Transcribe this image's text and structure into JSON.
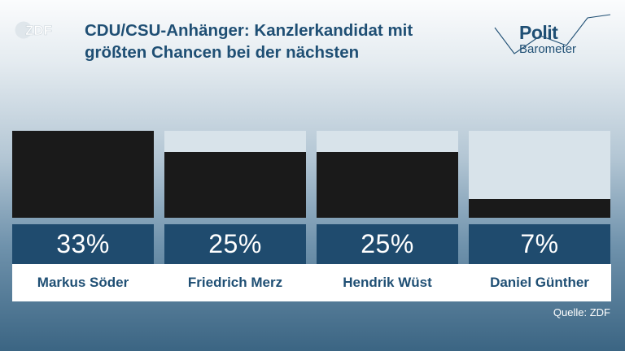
{
  "brand": {
    "logo_text": "ZDF",
    "program_line1": "Polit",
    "program_line2": "Barometer"
  },
  "title": "CDU/CSU-Anhänger: Kanzlerkandidat mit größten Chancen bei der nächsten",
  "source": "Quelle: ZDF",
  "colors": {
    "bar": "#1a1a1a",
    "bar_track": "#d8e3ea",
    "value_box": "#1f4b6e",
    "title": "#1f4f74"
  },
  "chart_data": {
    "type": "bar",
    "title": "CDU/CSU-Anhänger: Kanzlerkandidat mit größten Chancen bei der nächsten",
    "categories": [
      "Markus Söder",
      "Friedrich Merz",
      "Hendrik Wüst",
      "Daniel Günther"
    ],
    "values": [
      33,
      25,
      25,
      7
    ],
    "value_labels": [
      "33%",
      "25%",
      "25%",
      "7%"
    ],
    "unit": "%",
    "ylim": [
      0,
      33
    ],
    "grid": false,
    "legend": "none"
  }
}
